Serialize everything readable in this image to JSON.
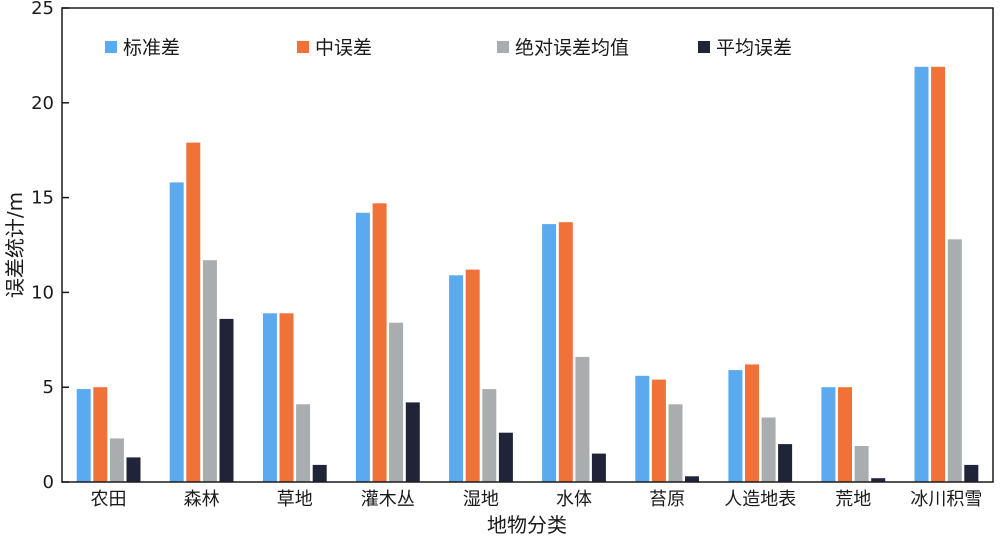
{
  "chart_data": {
    "type": "bar",
    "categories": [
      "农田",
      "森林",
      "草地",
      "灌木丛",
      "湿地",
      "水体",
      "苔原",
      "人造地表",
      "荒地",
      "冰川积雪"
    ],
    "series": [
      {
        "name": "标准差",
        "color": "#5ba9ef",
        "values": [
          4.9,
          15.8,
          8.9,
          14.2,
          10.9,
          13.6,
          5.6,
          5.9,
          5.0,
          21.9
        ]
      },
      {
        "name": "中误差",
        "color": "#f07238",
        "values": [
          5.0,
          17.9,
          8.9,
          14.7,
          11.2,
          13.7,
          5.4,
          6.2,
          5.0,
          21.9
        ]
      },
      {
        "name": "绝对误差均值",
        "color": "#a9adaf",
        "values": [
          2.3,
          11.7,
          4.1,
          8.4,
          4.9,
          6.6,
          4.1,
          3.4,
          1.9,
          12.8
        ]
      },
      {
        "name": "平均误差",
        "color": "#1f2438",
        "values": [
          1.3,
          8.6,
          0.9,
          4.2,
          2.6,
          1.5,
          0.3,
          2.0,
          0.2,
          0.9
        ]
      }
    ],
    "xlabel": "地物分类",
    "ylabel": "误差统计/m",
    "ylim": [
      0,
      25
    ],
    "yticks": [
      0,
      5,
      10,
      15,
      20,
      25
    ],
    "grid": false,
    "legend_position": "top"
  }
}
